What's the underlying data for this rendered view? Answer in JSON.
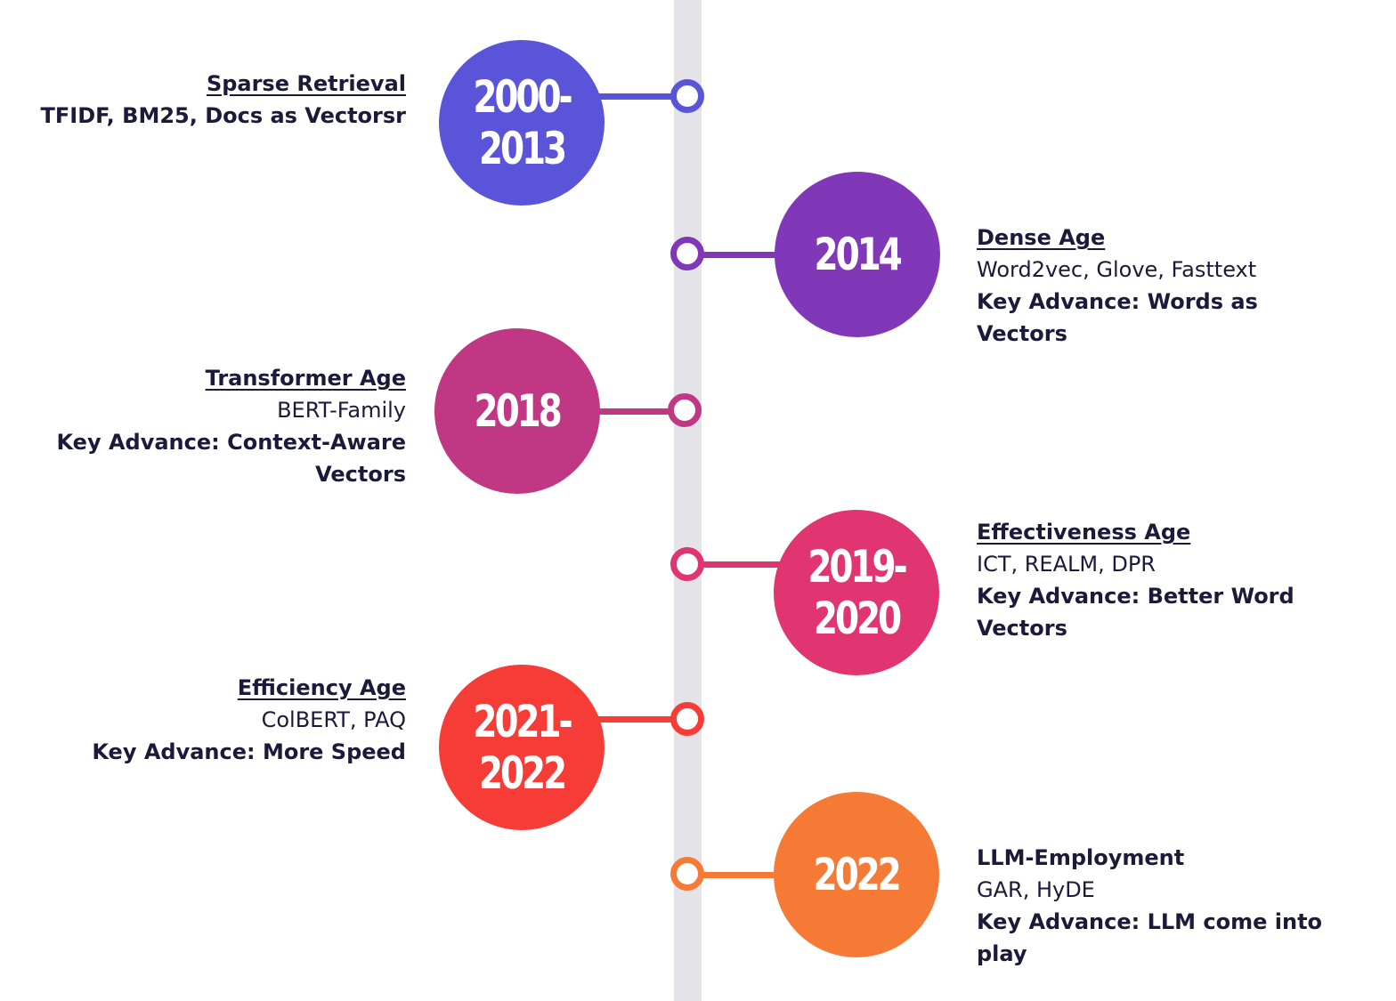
{
  "timeline": {
    "events": [
      {
        "year": "2000-\n2013",
        "title": "Sparse Retrieval",
        "methods": "TFIDF, BM25, Docs as Vectorsr",
        "advance": "",
        "color": "#5a55d8",
        "side": "left"
      },
      {
        "year": "2014",
        "title": "Dense Age",
        "methods": "Word2vec, Glove, Fasttext",
        "advance": "Key Advance: Words as Vectors",
        "color": "#8138b8",
        "side": "right"
      },
      {
        "year": "2018",
        "title": "Transformer Age",
        "methods": "BERT-Family",
        "advance": "Key Advance: Context-Aware Vectors",
        "color": "#c03784",
        "side": "left"
      },
      {
        "year": "2019-\n2020",
        "title": "Effectiveness Age",
        "methods": "ICT, REALM, DPR",
        "advance": "Key Advance: Better Word Vectors",
        "color": "#e03570",
        "side": "right"
      },
      {
        "year": "2021-\n2022",
        "title": "Efficiency Age",
        "methods": "ColBERT, PAQ",
        "advance": "Key Advance: More Speed",
        "color": "#f53c36",
        "side": "left"
      },
      {
        "year": "2022",
        "title": "LLM-Employment",
        "methods": "GAR, HyDE",
        "advance": "Key Advance: LLM come into play",
        "color": "#f57a36",
        "side": "right"
      }
    ]
  }
}
